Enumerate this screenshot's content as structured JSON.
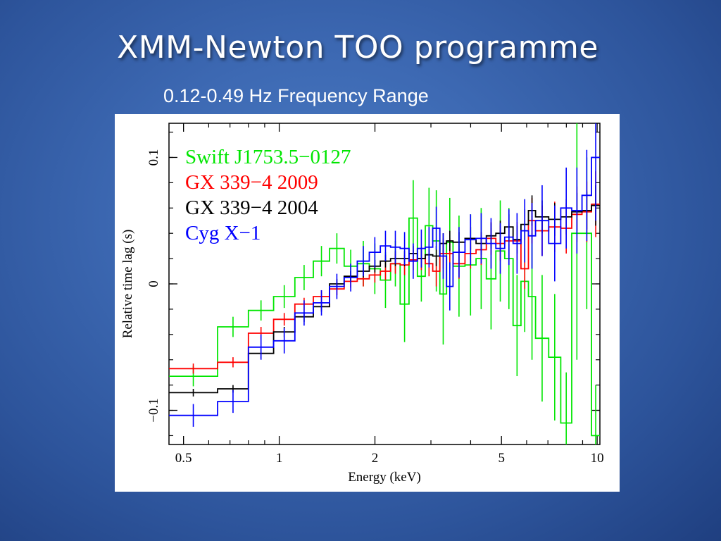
{
  "slide": {
    "title": "XMM-Newton TOO programme",
    "subtitle": "0.12-0.49 Hz Frequency Range"
  },
  "chart_data": {
    "type": "line",
    "xlabel": "Energy (keV)",
    "ylabel": "Relative time lag (s)",
    "xscale": "log",
    "xlim": [
      0.45,
      10.2
    ],
    "ylim": [
      -0.127,
      0.127
    ],
    "xticks": [
      {
        "value": 0.5,
        "label": "0.5"
      },
      {
        "value": 1,
        "label": "1"
      },
      {
        "value": 2,
        "label": "2"
      },
      {
        "value": 5,
        "label": "5"
      },
      {
        "value": 10,
        "label": "10"
      }
    ],
    "yticks": [
      {
        "value": -0.1,
        "label": "−0.1"
      },
      {
        "value": 0,
        "label": "0"
      },
      {
        "value": 0.1,
        "label": "0.1"
      }
    ],
    "legend_position": "top-left",
    "bin_edges": [
      0.45,
      0.64,
      0.8,
      0.96,
      1.12,
      1.28,
      1.44,
      1.6,
      1.76,
      1.92,
      2.08,
      2.24,
      2.4,
      2.56,
      2.72,
      2.88,
      3.04,
      3.2,
      3.36,
      3.52,
      3.84,
      4.16,
      4.48,
      4.8,
      5.12,
      5.44,
      5.76,
      6.08,
      6.4,
      7.04,
      7.68,
      8.32,
      8.96,
      9.6,
      10.2
    ],
    "series": [
      {
        "name": "Swift J1753.5−0127",
        "color": "#00e600",
        "values": [
          -0.073,
          -0.034,
          -0.021,
          -0.01,
          0.005,
          0.018,
          0.028,
          0.014,
          0.016,
          0.012,
          0.003,
          0.016,
          -0.016,
          0.052,
          0.006,
          0.046,
          0.034,
          -0.008,
          0.033,
          0.014,
          0.015,
          0.02,
          0.004,
          0.026,
          0.02,
          -0.033,
          0.002,
          -0.01,
          -0.043,
          -0.058,
          -0.11,
          0.04,
          0.04,
          -0.12
        ],
        "errors": [
          0.008,
          0.008,
          0.008,
          0.009,
          0.01,
          0.012,
          0.012,
          0.013,
          0.018,
          0.02,
          0.022,
          0.018,
          0.03,
          0.03,
          0.02,
          0.03,
          0.04,
          0.04,
          0.035,
          0.04,
          0.04,
          0.04,
          0.04,
          0.04,
          0.04,
          0.04,
          0.04,
          0.05,
          0.05,
          0.05,
          0.04,
          0.1,
          0.06,
          0.04
        ]
      },
      {
        "name": "GX 339−4 2009",
        "color": "#ff0000",
        "values": [
          -0.067,
          -0.062,
          -0.039,
          -0.028,
          -0.016,
          -0.01,
          -0.004,
          0.002,
          0.004,
          0.007,
          0.01,
          0.016,
          0.015,
          0.019,
          0.02,
          0.016,
          0.01,
          0.024,
          0.024,
          0.016,
          0.024,
          0.027,
          0.036,
          0.032,
          0.034,
          0.034,
          0.012,
          0.05,
          0.042,
          0.045,
          0.044,
          0.055,
          0.057,
          0.063
        ],
        "errors": [
          0.004,
          0.004,
          0.005,
          0.005,
          0.005,
          0.005,
          0.005,
          0.005,
          0.006,
          0.006,
          0.007,
          0.008,
          0.008,
          0.008,
          0.009,
          0.01,
          0.012,
          0.012,
          0.012,
          0.012,
          0.012,
          0.012,
          0.013,
          0.014,
          0.014,
          0.015,
          0.016,
          0.018,
          0.02,
          0.02,
          0.02,
          0.022,
          0.024,
          0.026
        ]
      },
      {
        "name": "GX 339−4 2004",
        "color": "#000000",
        "values": [
          -0.086,
          -0.083,
          -0.055,
          -0.038,
          -0.026,
          -0.018,
          0.0,
          0.006,
          0.01,
          0.014,
          0.018,
          0.02,
          0.02,
          0.024,
          0.02,
          0.023,
          0.022,
          0.032,
          0.034,
          0.033,
          0.036,
          0.032,
          0.038,
          0.04,
          0.045,
          0.035,
          0.047,
          0.058,
          0.053,
          0.051,
          0.053,
          0.057,
          0.058,
          0.062
        ],
        "errors": [
          0.003,
          0.003,
          0.004,
          0.004,
          0.004,
          0.004,
          0.004,
          0.004,
          0.005,
          0.005,
          0.005,
          0.006,
          0.006,
          0.006,
          0.007,
          0.007,
          0.008,
          0.008,
          0.008,
          0.008,
          0.009,
          0.009,
          0.01,
          0.01,
          0.01,
          0.011,
          0.012,
          0.012,
          0.013,
          0.013,
          0.014,
          0.015,
          0.015,
          0.016
        ]
      },
      {
        "name": "Cyg X−1",
        "color": "#0000ff",
        "values": [
          -0.104,
          -0.093,
          -0.05,
          -0.045,
          -0.023,
          -0.015,
          -0.002,
          0.005,
          0.018,
          0.025,
          0.03,
          0.029,
          0.028,
          0.018,
          0.028,
          0.029,
          0.044,
          0.022,
          -0.002,
          0.025,
          0.035,
          0.036,
          0.032,
          0.028,
          0.037,
          0.032,
          0.042,
          0.038,
          0.05,
          0.032,
          0.06,
          0.058,
          0.07,
          0.1
        ],
        "errors": [
          0.009,
          0.009,
          0.01,
          0.01,
          0.01,
          0.01,
          0.01,
          0.011,
          0.012,
          0.012,
          0.012,
          0.013,
          0.013,
          0.014,
          0.015,
          0.016,
          0.017,
          0.018,
          0.019,
          0.02,
          0.02,
          0.02,
          0.02,
          0.02,
          0.022,
          0.024,
          0.025,
          0.026,
          0.028,
          0.03,
          0.032,
          0.034,
          0.036,
          0.05
        ]
      }
    ]
  }
}
